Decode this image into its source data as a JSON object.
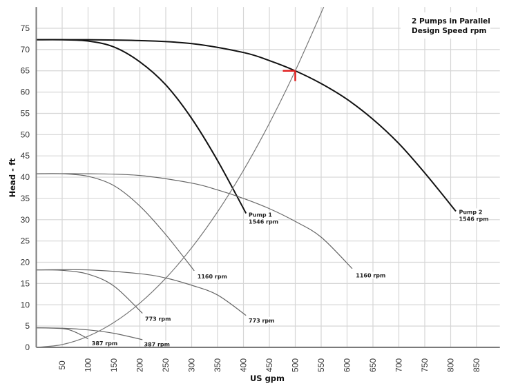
{
  "chart_data": {
    "type": "line",
    "title": [
      "2 Pumps in Parallel",
      "Design Speed rpm"
    ],
    "xlabel": "US gpm",
    "ylabel": "Head - ft",
    "xlim": [
      0,
      895
    ],
    "ylim": [
      0,
      80
    ],
    "x_ticks": [
      50,
      100,
      150,
      200,
      250,
      300,
      350,
      400,
      450,
      500,
      550,
      600,
      650,
      700,
      750,
      800,
      850
    ],
    "y_ticks": [
      0,
      5,
      10,
      15,
      20,
      25,
      30,
      35,
      40,
      45,
      50,
      55,
      60,
      65,
      70,
      75
    ],
    "grid": true,
    "legend": "none (inline curve labels)",
    "series": [
      {
        "name": "Pump 2 1546 rpm (parallel)",
        "label": [
          "Pump 2",
          "1546 rpm"
        ],
        "color": "#111111",
        "width": 2,
        "x": [
          0,
          100,
          200,
          300,
          400,
          450,
          500,
          550,
          600,
          650,
          700,
          750,
          810
        ],
        "y": [
          72.3,
          72.3,
          72.1,
          71.4,
          69.3,
          67.4,
          65.0,
          62.0,
          58.3,
          53.6,
          47.9,
          41.0,
          32.0
        ]
      },
      {
        "name": "Pump 1 1546 rpm (single)",
        "label": [
          "Pump 1",
          "1546 rpm"
        ],
        "color": "#111111",
        "width": 2,
        "x": [
          0,
          50,
          100,
          150,
          200,
          250,
          300,
          350,
          405
        ],
        "y": [
          72.3,
          72.3,
          72.0,
          70.6,
          67.1,
          61.7,
          53.8,
          43.9,
          31.5
        ]
      },
      {
        "name": "1160 rpm (parallel)",
        "label": [
          "1160 rpm"
        ],
        "color": "#666666",
        "width": 1.2,
        "x": [
          0,
          100,
          200,
          300,
          350,
          400,
          450,
          500,
          550,
          610
        ],
        "y": [
          40.8,
          40.8,
          40.4,
          38.6,
          37.0,
          35.0,
          32.6,
          29.6,
          25.9,
          18.5
        ]
      },
      {
        "name": "1160 rpm (single)",
        "label": [
          "1160 rpm"
        ],
        "color": "#666666",
        "width": 1.2,
        "x": [
          0,
          50,
          100,
          150,
          200,
          250,
          305
        ],
        "y": [
          40.8,
          40.8,
          40.2,
          38.0,
          33.2,
          26.5,
          18.0
        ]
      },
      {
        "name": "773 rpm (parallel)",
        "label": [
          "773 rpm"
        ],
        "color": "#666666",
        "width": 1.2,
        "x": [
          0,
          100,
          200,
          250,
          300,
          350,
          405
        ],
        "y": [
          18.2,
          18.2,
          17.3,
          16.3,
          14.6,
          12.3,
          7.5
        ]
      },
      {
        "name": "773 rpm (single)",
        "label": [
          "773 rpm"
        ],
        "color": "#666666",
        "width": 1.2,
        "x": [
          0,
          50,
          100,
          150,
          205
        ],
        "y": [
          18.2,
          18.1,
          17.2,
          14.4,
          8.0
        ]
      },
      {
        "name": "387 rpm (parallel)",
        "label": [
          "387 rpm"
        ],
        "color": "#666666",
        "width": 1.2,
        "x": [
          0,
          50,
          100,
          150,
          205
        ],
        "y": [
          4.6,
          4.5,
          4.1,
          3.3,
          1.8
        ]
      },
      {
        "name": "387 rpm (single)",
        "label": [
          "387 rpm"
        ],
        "color": "#666666",
        "width": 1.2,
        "x": [
          0,
          50,
          75,
          100
        ],
        "y": [
          4.6,
          4.4,
          3.6,
          2.0
        ]
      },
      {
        "name": "System curve",
        "label": [],
        "color": "#777777",
        "width": 1.2,
        "x": [
          0,
          50,
          100,
          150,
          200,
          250,
          300,
          350,
          400,
          450,
          500,
          555
        ],
        "y": [
          0,
          0.65,
          2.6,
          5.85,
          10.4,
          16.25,
          23.4,
          31.85,
          41.6,
          52.65,
          65.0,
          80.0
        ]
      }
    ],
    "curve_labels": [
      {
        "series": 0,
        "lines": [
          "Pump 2",
          "1546 rpm"
        ],
        "x": 816,
        "y": 32.5
      },
      {
        "series": 1,
        "lines": [
          "Pump 1",
          "1546 rpm"
        ],
        "x": 410,
        "y": 31.8
      },
      {
        "series": 2,
        "lines": [
          "1160 rpm"
        ],
        "x": 617,
        "y": 17.6
      },
      {
        "series": 3,
        "lines": [
          "1160 rpm"
        ],
        "x": 311,
        "y": 17.3
      },
      {
        "series": 4,
        "lines": [
          "773 rpm"
        ],
        "x": 410,
        "y": 7.0
      },
      {
        "series": 5,
        "lines": [
          "773 rpm"
        ],
        "x": 210,
        "y": 7.4
      },
      {
        "series": 6,
        "lines": [
          "387 rpm"
        ],
        "x": 208,
        "y": 1.4
      },
      {
        "series": 7,
        "lines": [
          "387 rpm"
        ],
        "x": 107,
        "y": 1.6
      }
    ],
    "annotations": [
      {
        "type": "operating-point-marker",
        "x": 500,
        "y": 65,
        "color": "#e02020",
        "description": "Red corner marker at system curve / Pump 2 intersection"
      }
    ]
  }
}
